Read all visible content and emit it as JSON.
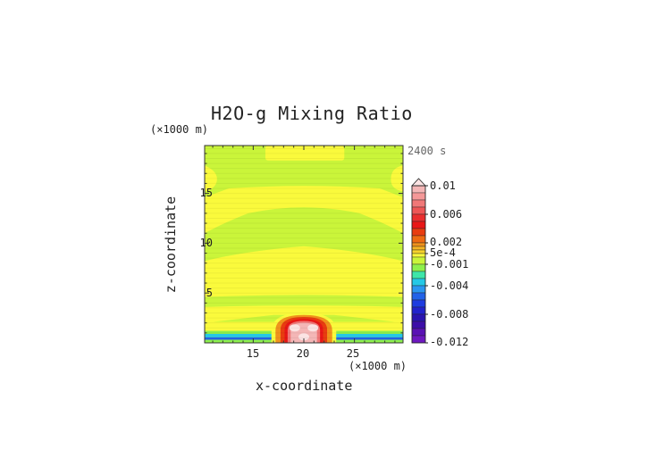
{
  "chart_data": {
    "type": "heatmap",
    "title": "H2O-g Mixing Ratio",
    "time_label": "2400 s",
    "xlabel": "x-coordinate",
    "ylabel": "z-coordinate",
    "x_unit": "(×1000 m)",
    "y_unit": "(×1000 m)",
    "x_range": [
      10.2,
      29.8
    ],
    "y_range": [
      0,
      19.8
    ],
    "x_ticks": [
      15,
      20,
      25
    ],
    "y_ticks": [
      5,
      10,
      15
    ],
    "grid": false,
    "legend_position": "right",
    "colorbar": {
      "levels": [
        {
          "value": 0.01,
          "color": "#f4b6b6"
        },
        {
          "value": 0.009,
          "color": "#f49898"
        },
        {
          "value": 0.008,
          "color": "#f07878"
        },
        {
          "value": 0.007,
          "color": "#ee5656"
        },
        {
          "value": 0.006,
          "color": "#ea2e2e"
        },
        {
          "value": 0.005,
          "color": "#e81616"
        },
        {
          "value": 0.004,
          "color": "#e83c10"
        },
        {
          "value": 0.003,
          "color": "#ee6a12"
        },
        {
          "value": 0.002,
          "color": "#f0921c"
        },
        {
          "value": 0.0015,
          "color": "#f4b424"
        },
        {
          "value": 0.001,
          "color": "#f6d22c"
        },
        {
          "value": 0.0005,
          "color": "#fafa3c"
        },
        {
          "value": 0,
          "color": "#caf53a"
        },
        {
          "value": -0.001,
          "color": "#8ef04c"
        },
        {
          "value": -0.002,
          "color": "#3ee6a8"
        },
        {
          "value": -0.003,
          "color": "#24c8e6"
        },
        {
          "value": -0.004,
          "color": "#2a96f0"
        },
        {
          "value": -0.005,
          "color": "#2262e8"
        },
        {
          "value": -0.006,
          "color": "#1e3ce0"
        },
        {
          "value": -0.007,
          "color": "#2222cc"
        },
        {
          "value": -0.008,
          "color": "#2a14b0"
        },
        {
          "value": -0.009,
          "color": "#3c0ea8"
        },
        {
          "value": -0.01,
          "color": "#5a12b4"
        },
        {
          "value": -0.011,
          "color": "#6e18c0"
        },
        {
          "value": -0.012,
          "color": "#8222cc"
        }
      ],
      "tick_labels": [
        "0.01",
        "0.006",
        "0.002",
        "5e-4",
        "-0.001",
        "-0.004",
        "-0.008",
        "-0.012"
      ],
      "tick_values": [
        0.01,
        0.006,
        0.002,
        0.0005,
        -0.001,
        -0.004,
        -0.008,
        -0.012
      ],
      "over_color": "#fbe4e4"
    }
  }
}
